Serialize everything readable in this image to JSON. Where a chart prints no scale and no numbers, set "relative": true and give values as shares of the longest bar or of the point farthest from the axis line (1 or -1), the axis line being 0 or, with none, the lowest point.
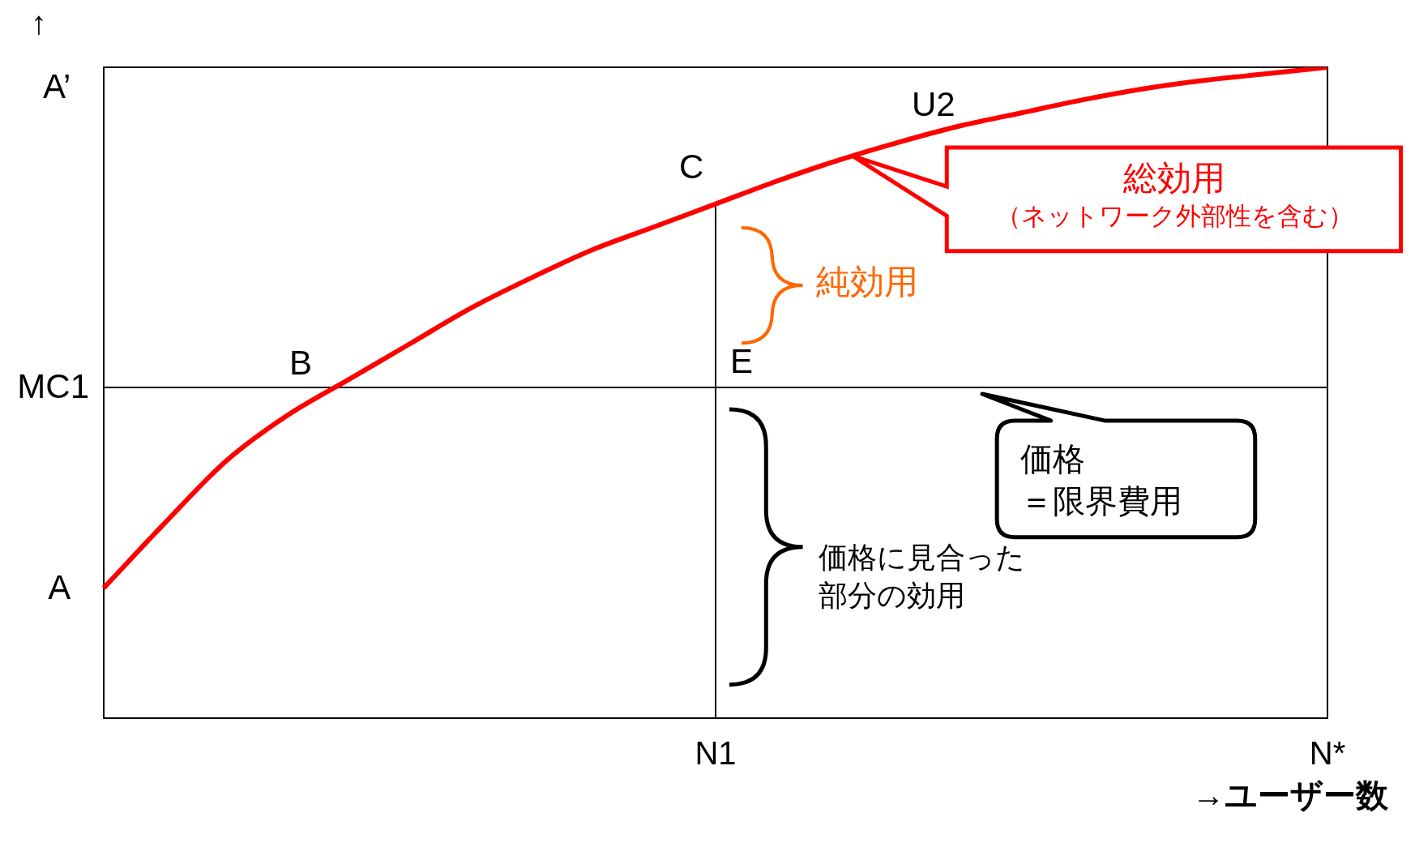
{
  "chart_data": {
    "type": "line",
    "xlabel": "→ユーザー数",
    "ylabel": "↑",
    "relative": true,
    "categories": [
      null,
      null,
      null,
      null,
      null,
      null,
      null,
      null,
      null,
      null,
      "N1",
      null,
      null,
      null,
      null,
      null,
      null,
      null,
      null,
      null,
      "N*"
    ],
    "series": [
      {
        "color": "#ff0000",
        "values": [
          0.2,
          0.3,
          0.395,
          0.465,
          0.52,
          0.575,
          0.63,
          0.677,
          0.72,
          0.755,
          0.79,
          0.825,
          0.857,
          0.885,
          0.91,
          0.93,
          0.95,
          0.967,
          0.98,
          0.99,
          1.0
        ]
      }
    ],
    "ref_lines": [
      {
        "axis": "x",
        "value": "N1",
        "color": "#000000"
      },
      {
        "axis": "y",
        "value": 0.508,
        "label": "MC1",
        "color": "#000000"
      }
    ],
    "annotations": [
      "B",
      {
        "text": "C",
        "x": "N1",
        "y": 0.79
      },
      {
        "text": "E",
        "x": "N1",
        "y": 0.508
      },
      "総効用",
      "（ネットワーク外部性を含む）",
      "純効用",
      "価格",
      "＝限界費用",
      "価格に見合った",
      "部分の効用",
      "A",
      "A’",
      "U2"
    ],
    "grid": false,
    "legend": false,
    "marker": "none",
    "line_style": "solid"
  }
}
